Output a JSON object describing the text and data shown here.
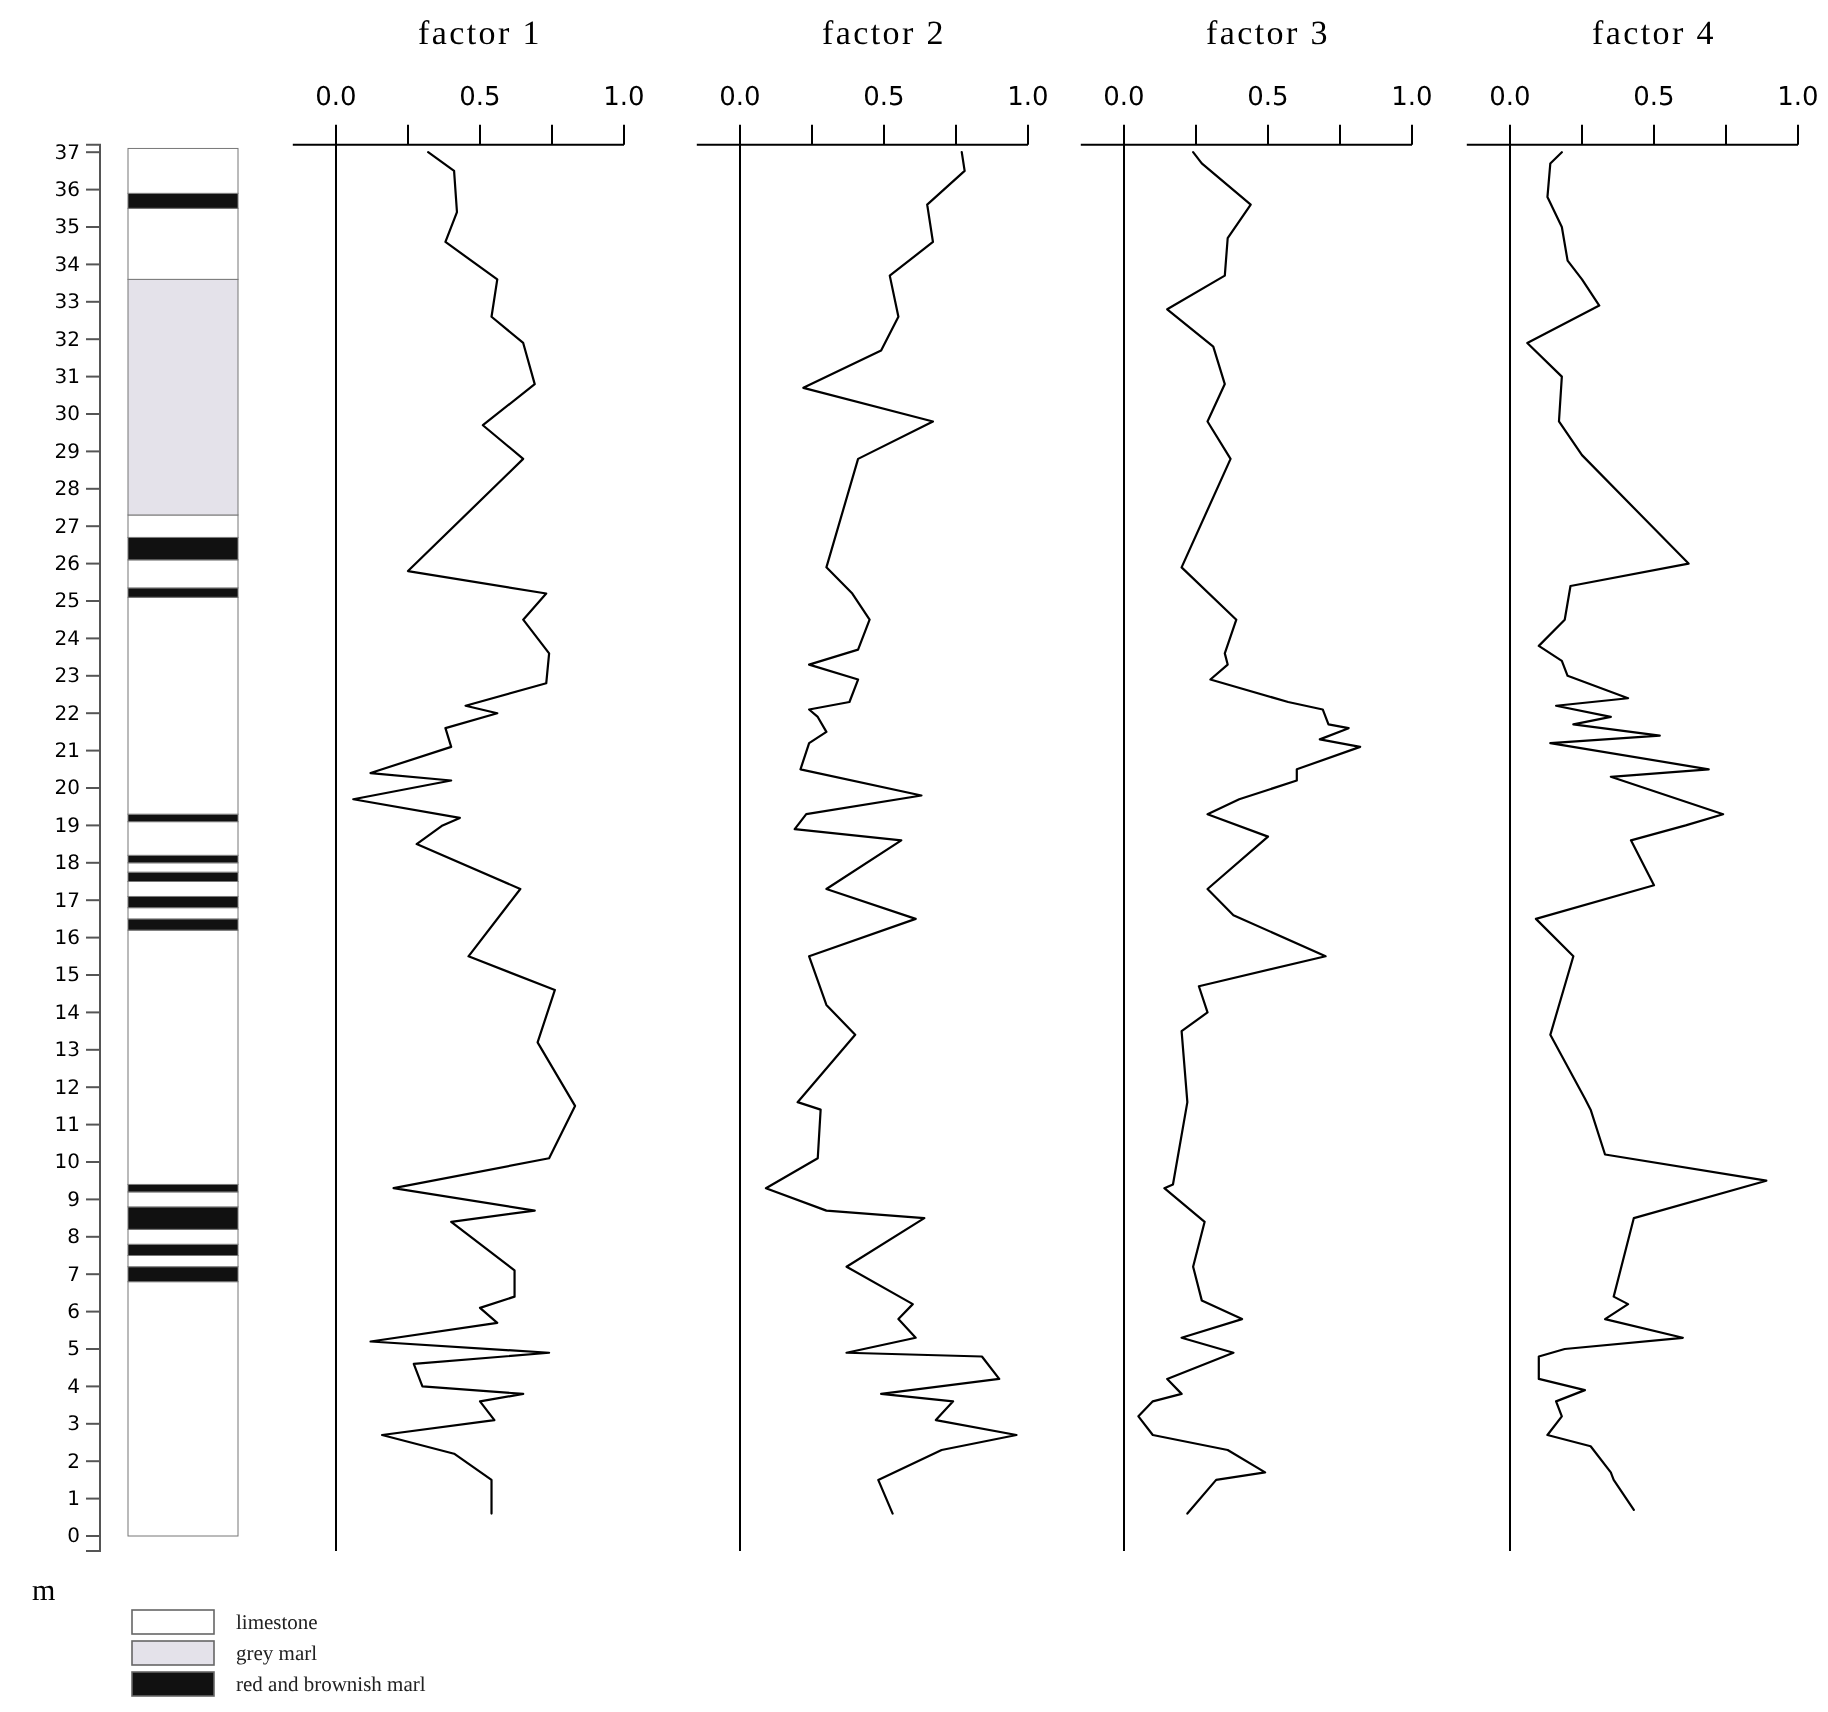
{
  "chart_data": [
    {
      "type": "bar",
      "stacked": true,
      "tick_labels": "y",
      "categories": [
        null
      ],
      "ylim": [
        -0.4,
        37.2
      ],
      "series": [
        {
          "color": "#ffffff",
          "values": [
            6.8
          ]
        },
        {
          "color": "#111111",
          "values": [
            0.4
          ]
        },
        {
          "color": "#ffffff",
          "values": [
            0.3
          ]
        },
        {
          "color": "#111111",
          "values": [
            0.3
          ]
        },
        {
          "color": "#ffffff",
          "values": [
            0.4
          ]
        },
        {
          "color": "#111111",
          "values": [
            0.6
          ]
        },
        {
          "color": "#ffffff",
          "values": [
            0.4
          ]
        },
        {
          "color": "#111111",
          "values": [
            0.2
          ]
        },
        {
          "color": "#ffffff",
          "values": [
            6.8
          ]
        },
        {
          "color": "#111111",
          "values": [
            0.3
          ]
        },
        {
          "color": "#ffffff",
          "values": [
            0.3
          ]
        },
        {
          "color": "#111111",
          "values": [
            0.3
          ]
        },
        {
          "color": "#ffffff",
          "values": [
            0.4
          ]
        },
        {
          "color": "#111111",
          "values": [
            0.25
          ]
        },
        {
          "color": "#ffffff",
          "values": [
            0.25
          ]
        },
        {
          "color": "#111111",
          "values": [
            0.2
          ]
        },
        {
          "color": "#ffffff",
          "values": [
            0.9
          ]
        },
        {
          "color": "#111111",
          "values": [
            0.2
          ]
        },
        {
          "color": "#ffffff",
          "values": [
            5.8
          ]
        },
        {
          "color": "#111111",
          "values": [
            0.25
          ]
        },
        {
          "color": "#ffffff",
          "values": [
            0.75
          ]
        },
        {
          "color": "#111111",
          "values": [
            0.6
          ]
        },
        {
          "color": "#ffffff",
          "values": [
            0.6
          ]
        },
        {
          "color": "#e4e2ea",
          "values": [
            6.3
          ]
        },
        {
          "color": "#ffffff",
          "values": [
            1.9
          ]
        },
        {
          "color": "#111111",
          "values": [
            0.4
          ]
        },
        {
          "color": "#ffffff",
          "values": [
            1.2
          ]
        }
      ],
      "yticks": [
        0,
        1,
        2,
        3,
        4,
        5,
        6,
        7,
        8,
        9,
        10,
        11,
        12,
        13,
        14,
        15,
        16,
        17,
        18,
        19,
        20,
        21,
        22,
        23,
        24,
        25,
        26,
        27,
        28,
        29,
        30,
        31,
        32,
        33,
        34,
        35,
        36,
        37
      ],
      "annotations": [
        "m",
        "limestone",
        "grey marl",
        "red and brownish marl"
      ]
    },
    {
      "type": "line",
      "title": "factor 1",
      "tick_labels": "x",
      "xlim": [
        -0.15,
        1
      ],
      "ylim": [
        -0.4,
        37.2
      ],
      "xticks": [
        {
          "value": 0,
          "label": "0.0"
        },
        {
          "value": 0.25,
          "label": null
        },
        {
          "value": 0.5,
          "label": "0.5"
        },
        {
          "value": 0.75,
          "label": null
        },
        {
          "value": 1,
          "label": "1.0"
        }
      ],
      "ref_lines": [
        {
          "axis": "x",
          "value": 0,
          "color": "#000000"
        }
      ],
      "series": [
        {
          "color": "#000000",
          "x": [
            0.32,
            0.41,
            0.42,
            0.38,
            0.56,
            0.54,
            0.65,
            0.69,
            0.51,
            0.65,
            0.25,
            0.73,
            0.65,
            0.74,
            0.73,
            0.45,
            0.56,
            0.38,
            0.4,
            0.12,
            0.4,
            0.06,
            0.43,
            0.37,
            0.28,
            0.64,
            0.46,
            0.76,
            0.7,
            0.83,
            0.74,
            0.2,
            0.69,
            0.4,
            0.62,
            0.62,
            0.5,
            0.56,
            0.12,
            0.74,
            0.27,
            0.3,
            0.65,
            0.5,
            0.55,
            0.16,
            0.41,
            0.54,
            0.54
          ],
          "values": [
            37,
            36.5,
            35.4,
            34.6,
            33.6,
            32.6,
            31.9,
            30.8,
            29.7,
            28.8,
            25.8,
            25.2,
            24.5,
            23.6,
            22.8,
            22.2,
            22,
            21.6,
            21.1,
            20.4,
            20.2,
            19.7,
            19.2,
            19,
            18.5,
            17.3,
            15.5,
            14.6,
            13.2,
            11.5,
            10.1,
            9.3,
            8.7,
            8.4,
            7.1,
            6.4,
            6.1,
            5.7,
            5.2,
            4.9,
            4.6,
            4,
            3.8,
            3.6,
            3.1,
            2.7,
            2.2,
            1.5,
            0.6
          ]
        }
      ]
    },
    {
      "type": "line",
      "title": "factor 2",
      "tick_labels": "x",
      "xlim": [
        -0.15,
        1
      ],
      "ylim": [
        -0.4,
        37.2
      ],
      "xticks": [
        {
          "value": 0,
          "label": "0.0"
        },
        {
          "value": 0.25,
          "label": null
        },
        {
          "value": 0.5,
          "label": "0.5"
        },
        {
          "value": 0.75,
          "label": null
        },
        {
          "value": 1,
          "label": "1.0"
        }
      ],
      "ref_lines": [
        {
          "axis": "x",
          "value": 0,
          "color": "#000000"
        }
      ],
      "series": [
        {
          "color": "#000000",
          "x": [
            0.77,
            0.78,
            0.65,
            0.67,
            0.52,
            0.55,
            0.49,
            0.22,
            0.67,
            0.41,
            0.3,
            0.39,
            0.45,
            0.41,
            0.24,
            0.41,
            0.38,
            0.24,
            0.27,
            0.3,
            0.24,
            0.21,
            0.63,
            0.23,
            0.19,
            0.56,
            0.3,
            0.61,
            0.24,
            0.3,
            0.4,
            0.2,
            0.28,
            0.27,
            0.09,
            0.3,
            0.64,
            0.37,
            0.6,
            0.55,
            0.61,
            0.37,
            0.84,
            0.9,
            0.49,
            0.74,
            0.68,
            0.96,
            0.7,
            0.48,
            0.53
          ],
          "values": [
            37,
            36.5,
            35.6,
            34.6,
            33.7,
            32.6,
            31.7,
            30.7,
            29.8,
            28.8,
            25.9,
            25.2,
            24.5,
            23.7,
            23.3,
            22.9,
            22.3,
            22.1,
            21.9,
            21.5,
            21.2,
            20.5,
            19.8,
            19.3,
            18.9,
            18.6,
            17.3,
            16.5,
            15.5,
            14.2,
            13.4,
            11.6,
            11.4,
            10.1,
            9.3,
            8.7,
            8.5,
            7.2,
            6.2,
            5.8,
            5.3,
            4.9,
            4.8,
            4.2,
            3.8,
            3.6,
            3.1,
            2.7,
            2.3,
            1.5,
            0.6
          ]
        }
      ]
    },
    {
      "type": "line",
      "title": "factor 3",
      "tick_labels": "x",
      "xlim": [
        -0.15,
        1
      ],
      "ylim": [
        -0.4,
        37.2
      ],
      "xticks": [
        {
          "value": 0,
          "label": "0.0"
        },
        {
          "value": 0.25,
          "label": null
        },
        {
          "value": 0.5,
          "label": "0.5"
        },
        {
          "value": 0.75,
          "label": null
        },
        {
          "value": 1,
          "label": "1.0"
        }
      ],
      "ref_lines": [
        {
          "axis": "x",
          "value": 0,
          "color": "#000000"
        }
      ],
      "series": [
        {
          "color": "#000000",
          "x": [
            0.24,
            0.27,
            0.44,
            0.36,
            0.35,
            0.15,
            0.31,
            0.35,
            0.29,
            0.37,
            0.2,
            0.39,
            0.35,
            0.36,
            0.3,
            0.57,
            0.69,
            0.71,
            0.78,
            0.68,
            0.82,
            0.6,
            0.6,
            0.4,
            0.29,
            0.5,
            0.29,
            0.38,
            0.7,
            0.26,
            0.29,
            0.2,
            0.22,
            0.17,
            0.14,
            0.28,
            0.24,
            0.27,
            0.41,
            0.2,
            0.38,
            0.15,
            0.2,
            0.1,
            0.05,
            0.1,
            0.36,
            0.49,
            0.32,
            0.22
          ],
          "values": [
            37,
            36.7,
            35.6,
            34.7,
            33.7,
            32.8,
            31.8,
            30.8,
            29.8,
            28.8,
            25.9,
            24.5,
            23.6,
            23.3,
            22.9,
            22.3,
            22.1,
            21.7,
            21.6,
            21.3,
            21.1,
            20.5,
            20.2,
            19.7,
            19.3,
            18.7,
            17.3,
            16.6,
            15.5,
            14.7,
            14,
            13.5,
            11.6,
            9.4,
            9.3,
            8.4,
            7.2,
            6.3,
            5.8,
            5.3,
            4.9,
            4.2,
            3.8,
            3.6,
            3.2,
            2.7,
            2.3,
            1.7,
            1.5,
            0.6
          ]
        }
      ]
    },
    {
      "type": "line",
      "title": "factor 4",
      "tick_labels": "x",
      "xlim": [
        -0.15,
        1
      ],
      "ylim": [
        -0.4,
        37.2
      ],
      "xticks": [
        {
          "value": 0,
          "label": "0.0"
        },
        {
          "value": 0.25,
          "label": null
        },
        {
          "value": 0.5,
          "label": "0.5"
        },
        {
          "value": 0.75,
          "label": null
        },
        {
          "value": 1,
          "label": "1.0"
        }
      ],
      "ref_lines": [
        {
          "axis": "x",
          "value": 0,
          "color": "#000000"
        }
      ],
      "series": [
        {
          "color": "#000000",
          "x": [
            0.18,
            0.14,
            0.13,
            0.18,
            0.2,
            0.25,
            0.31,
            0.06,
            0.18,
            0.17,
            0.25,
            0.62,
            0.21,
            0.19,
            0.1,
            0.18,
            0.2,
            0.41,
            0.16,
            0.35,
            0.22,
            0.52,
            0.14,
            0.69,
            0.35,
            0.74,
            0.61,
            0.42,
            0.5,
            0.09,
            0.22,
            0.14,
            0.26,
            0.28,
            0.33,
            0.89,
            0.43,
            0.36,
            0.41,
            0.33,
            0.6,
            0.19,
            0.1,
            0.1,
            0.26,
            0.16,
            0.18,
            0.13,
            0.28,
            0.35,
            0.36,
            0.43
          ],
          "values": [
            37,
            36.7,
            35.8,
            35,
            34.1,
            33.6,
            32.9,
            31.9,
            31,
            29.8,
            28.9,
            26,
            25.4,
            24.5,
            23.8,
            23.4,
            23,
            22.4,
            22.2,
            21.9,
            21.7,
            21.4,
            21.2,
            20.5,
            20.3,
            19.3,
            19,
            18.6,
            17.4,
            16.5,
            15.5,
            13.4,
            11.7,
            11.4,
            10.2,
            9.5,
            8.5,
            6.4,
            6.2,
            5.8,
            5.3,
            5,
            4.8,
            4.2,
            3.9,
            3.6,
            3.2,
            2.7,
            2.4,
            1.7,
            1.5,
            0.7
          ]
        }
      ]
    }
  ]
}
